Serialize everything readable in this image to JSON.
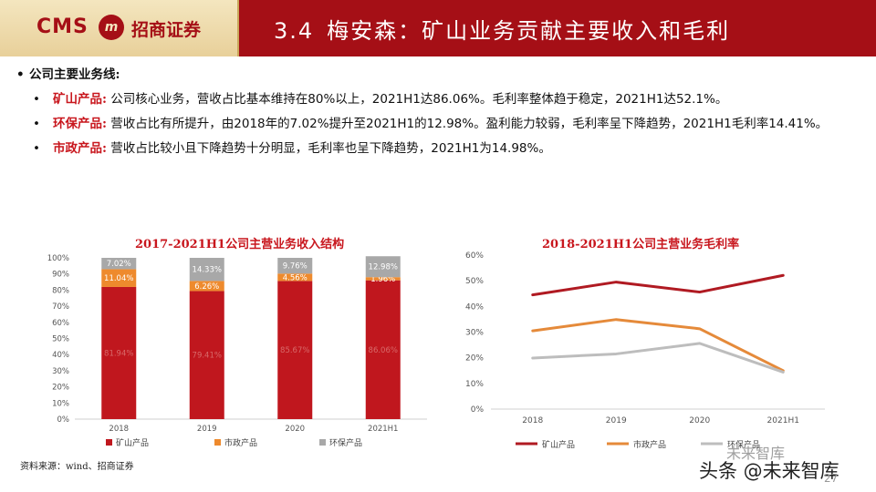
{
  "header": {
    "logo_cms": "CMS",
    "logo_emblem": "m",
    "logo_cn": "招商证券",
    "section": "3.4",
    "title": "梅安森：矿山业务贡献主要收入和毛利"
  },
  "intro": {
    "heading": "公司主要业务线:",
    "items": [
      {
        "label": "矿山产品:",
        "text": "公司核心业务，营收占比基本维持在80%以上，2021H1达86.06%。毛利率整体趋于稳定，2021H1达52.1%。"
      },
      {
        "label": "环保产品:",
        "text": "营收占比有所提升，由2018年的7.02%提升至2021H1的12.98%。盈利能力较弱，毛利率呈下降趋势，2021H1毛利率14.41%。"
      },
      {
        "label": "市政产品:",
        "text": "营收占比较小且下降趋势十分明显，毛利率也呈下降趋势，2021H1为14.98%。"
      }
    ]
  },
  "chart_data": [
    {
      "type": "bar",
      "stacked": true,
      "title": "2017-2021H1公司主营业务收入结构",
      "categories": [
        "2018",
        "2019",
        "2020",
        "2021H1"
      ],
      "series": [
        {
          "name": "矿山产品",
          "color": "#c0171e",
          "values": [
            81.94,
            79.41,
            85.67,
            86.06
          ],
          "labels": [
            "81.94%",
            "79.41%",
            "85.67%",
            "86.06%"
          ]
        },
        {
          "name": "市政产品",
          "color": "#ee8a2d",
          "values": [
            11.04,
            6.26,
            4.56,
            1.96
          ],
          "labels": [
            "11.04%",
            "6.26%",
            "4.56%",
            "1.96%"
          ]
        },
        {
          "name": "环保产品",
          "color": "#a8a8a8",
          "values": [
            7.02,
            14.33,
            9.76,
            12.98
          ],
          "labels": [
            "7.02%",
            "14.33%",
            "9.76%",
            "12.98%"
          ]
        }
      ],
      "y_ticks": [
        "0%",
        "10%",
        "20%",
        "30%",
        "40%",
        "50%",
        "60%",
        "70%",
        "80%",
        "90%",
        "100%"
      ],
      "ylim": [
        0,
        100
      ],
      "legend": "bottom"
    },
    {
      "type": "line",
      "title": "2018-2021H1公司主营业务毛利率",
      "categories": [
        "2018",
        "2019",
        "2020",
        "2021H1"
      ],
      "series": [
        {
          "name": "矿山产品",
          "color": "#b01a22",
          "values": [
            44.5,
            49.5,
            45.6,
            52.1
          ]
        },
        {
          "name": "市政产品",
          "color": "#e58a3a",
          "values": [
            30.5,
            34.9,
            31.3,
            14.98
          ]
        },
        {
          "name": "环保产品",
          "color": "#bdbdbd",
          "values": [
            19.9,
            21.5,
            25.6,
            14.41
          ]
        }
      ],
      "y_ticks": [
        "0%",
        "10%",
        "20%",
        "30%",
        "40%",
        "50%",
        "60%"
      ],
      "ylim": [
        0,
        60
      ],
      "legend": "bottom"
    }
  ],
  "footer": {
    "source": "资料来源：wind、招商证券",
    "watermark_top": "未来智库",
    "watermark_bottom": "头条 @未来智库",
    "page": "27"
  }
}
